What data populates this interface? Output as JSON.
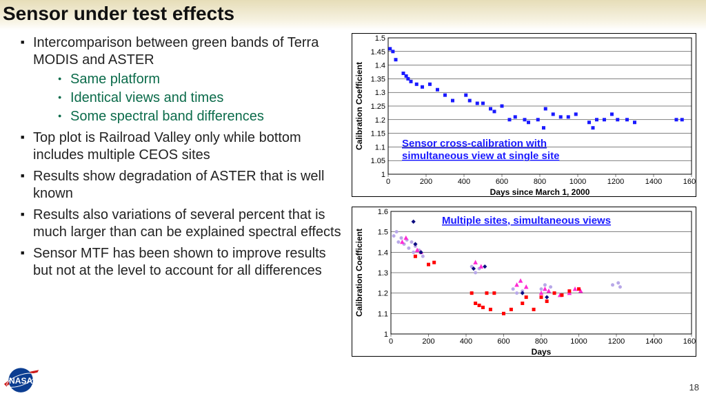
{
  "title": "Sensor under test effects",
  "pagenum": "18",
  "bullets": {
    "b1": "Intercomparison between green bands of Terra MODIS and ASTER",
    "b1_subs": [
      "Same platform",
      "Identical views and times",
      "Some spectral band differences"
    ],
    "b2": "Top plot is Railroad Valley only while bottom includes multiple CEOS sites",
    "b3": "Results show degradation of ASTER that is well known",
    "b4": "Results also variations of several percent that is much larger than can be explained spectral effects",
    "b5": "Sensor MTF has been shown to improve results but not at the level to account for all differences"
  },
  "chart1": {
    "type": "scatter",
    "annotation": "Sensor cross-calibration with simultaneous view at single site",
    "xlabel": "Days since March 1, 2000",
    "ylabel": "Calibration Coefficient",
    "xlim": [
      0,
      1600
    ],
    "xtick_step": 200,
    "ylim": [
      1,
      1.5
    ],
    "ytick_step": 0.05,
    "marker": "square",
    "marker_size": 5,
    "marker_color": "#1a1aff",
    "grid_color": "#000000",
    "background_color": "#ffffff",
    "points": [
      [
        10,
        1.46
      ],
      [
        25,
        1.45
      ],
      [
        40,
        1.42
      ],
      [
        80,
        1.37
      ],
      [
        95,
        1.36
      ],
      [
        105,
        1.35
      ],
      [
        120,
        1.34
      ],
      [
        150,
        1.33
      ],
      [
        180,
        1.32
      ],
      [
        220,
        1.33
      ],
      [
        260,
        1.31
      ],
      [
        300,
        1.29
      ],
      [
        340,
        1.27
      ],
      [
        410,
        1.29
      ],
      [
        430,
        1.27
      ],
      [
        470,
        1.26
      ],
      [
        500,
        1.26
      ],
      [
        540,
        1.24
      ],
      [
        560,
        1.23
      ],
      [
        600,
        1.25
      ],
      [
        640,
        1.2
      ],
      [
        670,
        1.21
      ],
      [
        720,
        1.2
      ],
      [
        740,
        1.19
      ],
      [
        790,
        1.2
      ],
      [
        820,
        1.17
      ],
      [
        830,
        1.24
      ],
      [
        870,
        1.22
      ],
      [
        910,
        1.21
      ],
      [
        950,
        1.21
      ],
      [
        990,
        1.22
      ],
      [
        1060,
        1.19
      ],
      [
        1080,
        1.17
      ],
      [
        1100,
        1.2
      ],
      [
        1140,
        1.2
      ],
      [
        1180,
        1.22
      ],
      [
        1210,
        1.2
      ],
      [
        1260,
        1.2
      ],
      [
        1300,
        1.19
      ],
      [
        1520,
        1.2
      ],
      [
        1550,
        1.2
      ]
    ]
  },
  "chart2": {
    "type": "scatter",
    "annotation": "Multiple sites, simultaneous views",
    "xlabel": "Days",
    "ylabel": "Calibration Coefficient",
    "xlim": [
      0,
      1600
    ],
    "xtick_step": 200,
    "ylim": [
      1,
      1.6
    ],
    "ytick_step": 0.1,
    "grid_color": "#000000",
    "background_color": "#ffffff",
    "series": [
      {
        "name": "lavender",
        "color": "#b8a8e8",
        "marker": "circle",
        "size": 5,
        "points": [
          [
            15,
            1.48
          ],
          [
            30,
            1.5
          ],
          [
            40,
            1.45
          ],
          [
            55,
            1.47
          ],
          [
            70,
            1.44
          ],
          [
            85,
            1.46
          ],
          [
            95,
            1.42
          ],
          [
            110,
            1.45
          ],
          [
            120,
            1.4
          ],
          [
            130,
            1.43
          ],
          [
            150,
            1.41
          ],
          [
            170,
            1.38
          ],
          [
            430,
            1.33
          ],
          [
            450,
            1.3
          ],
          [
            470,
            1.32
          ],
          [
            650,
            1.22
          ],
          [
            670,
            1.2
          ],
          [
            700,
            1.21
          ],
          [
            800,
            1.22
          ],
          [
            820,
            1.24
          ],
          [
            850,
            1.23
          ],
          [
            1180,
            1.24
          ],
          [
            1210,
            1.25
          ],
          [
            1220,
            1.23
          ]
        ]
      },
      {
        "name": "magenta",
        "color": "#ff2ad4",
        "marker": "triangle",
        "size": 6,
        "points": [
          [
            60,
            1.45
          ],
          [
            80,
            1.47
          ],
          [
            140,
            1.41
          ],
          [
            160,
            1.4
          ],
          [
            450,
            1.35
          ],
          [
            480,
            1.33
          ],
          [
            670,
            1.24
          ],
          [
            690,
            1.26
          ],
          [
            720,
            1.23
          ],
          [
            800,
            1.2
          ],
          [
            820,
            1.22
          ],
          [
            840,
            1.21
          ],
          [
            900,
            1.19
          ],
          [
            950,
            1.2
          ],
          [
            980,
            1.22
          ],
          [
            1010,
            1.21
          ]
        ]
      },
      {
        "name": "red",
        "color": "#ff0000",
        "marker": "square",
        "size": 5,
        "points": [
          [
            130,
            1.38
          ],
          [
            200,
            1.34
          ],
          [
            230,
            1.35
          ],
          [
            430,
            1.2
          ],
          [
            450,
            1.15
          ],
          [
            470,
            1.14
          ],
          [
            490,
            1.13
          ],
          [
            510,
            1.2
          ],
          [
            530,
            1.12
          ],
          [
            550,
            1.2
          ],
          [
            600,
            1.1
          ],
          [
            640,
            1.12
          ],
          [
            700,
            1.15
          ],
          [
            720,
            1.18
          ],
          [
            760,
            1.12
          ],
          [
            800,
            1.18
          ],
          [
            830,
            1.16
          ],
          [
            870,
            1.2
          ],
          [
            910,
            1.19
          ],
          [
            950,
            1.21
          ],
          [
            1000,
            1.22
          ]
        ]
      },
      {
        "name": "navy",
        "color": "#0b0b80",
        "marker": "diamond",
        "size": 5,
        "points": [
          [
            120,
            1.55
          ],
          [
            130,
            1.44
          ],
          [
            160,
            1.4
          ],
          [
            440,
            1.32
          ],
          [
            500,
            1.33
          ],
          [
            700,
            1.2
          ],
          [
            830,
            1.18
          ]
        ]
      }
    ]
  },
  "colors": {
    "sub_bullet": "#0b6b4a",
    "annotation": "#1a1aff"
  }
}
